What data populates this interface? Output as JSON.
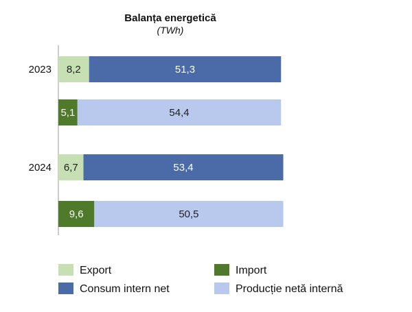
{
  "chart_data": {
    "type": "bar",
    "orientation": "horizontal",
    "stacked": true,
    "title": "Balanța energetică",
    "subtitle": "(TWh)",
    "grid": false,
    "legend_position": "bottom",
    "groups": [
      {
        "label": "2023",
        "bars": [
          {
            "segments": [
              {
                "series": "Export",
                "value": 8.2,
                "label": "8,2"
              },
              {
                "series": "Consum intern net",
                "value": 51.3,
                "label": "51,3"
              }
            ]
          },
          {
            "segments": [
              {
                "series": "Import",
                "value": 5.1,
                "label": "5,1"
              },
              {
                "series": "Producție netă internă",
                "value": 54.4,
                "label": "54,4"
              }
            ]
          }
        ]
      },
      {
        "label": "2024",
        "bars": [
          {
            "segments": [
              {
                "series": "Export",
                "value": 6.7,
                "label": "6,7"
              },
              {
                "series": "Consum intern net",
                "value": 53.4,
                "label": "53,4"
              }
            ]
          },
          {
            "segments": [
              {
                "series": "Import",
                "value": 9.6,
                "label": "9,6"
              },
              {
                "series": "Producție netă internă",
                "value": 50.5,
                "label": "50,5"
              }
            ]
          }
        ]
      }
    ],
    "series": [
      {
        "name": "Export",
        "color": "#c6e0b4",
        "label_color": "#1f1f1f"
      },
      {
        "name": "Import",
        "color": "#4e7a2a",
        "label_color": "#ffffff"
      },
      {
        "name": "Consum intern net",
        "color": "#4a6ba8",
        "label_color": "#ffffff"
      },
      {
        "name": "Producție netă internă",
        "color": "#b8c9ed",
        "label_color": "#1f1f1f"
      }
    ],
    "legend": [
      {
        "name": "Export",
        "color": "#c6e0b4"
      },
      {
        "name": "Import",
        "color": "#4e7a2a"
      },
      {
        "name": "Consum intern net",
        "color": "#4a6ba8"
      },
      {
        "name": "Producție netă internă",
        "color": "#b8c9ed"
      }
    ]
  }
}
